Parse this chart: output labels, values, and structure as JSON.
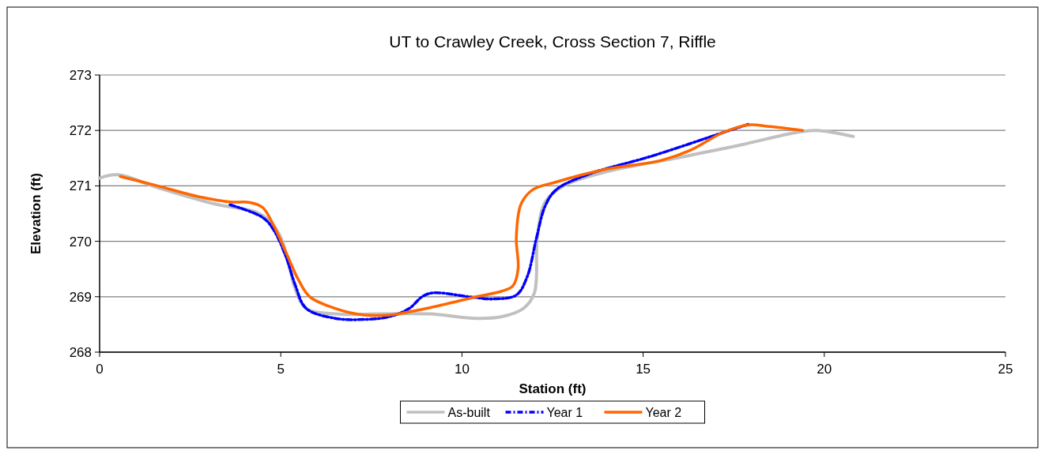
{
  "chart_data": {
    "type": "line",
    "title": "UT to Crawley Creek, Cross Section 7, Riffle",
    "xlabel": "Station (ft)",
    "ylabel": "Elevation (ft)",
    "xlim": [
      0,
      25
    ],
    "xticks": [
      0,
      5,
      10,
      15,
      20,
      25
    ],
    "ylim": [
      268,
      273
    ],
    "yticks": [
      268,
      269,
      270,
      271,
      272,
      273
    ],
    "grid": "y",
    "legend": "bottom",
    "marker": "none",
    "series": [
      {
        "name": "As-built",
        "color": "#c0c0c0",
        "line_style": "solid",
        "x": [
          0,
          0.5,
          1.6,
          3.2,
          4.3,
          4.7,
          5.0,
          5.25,
          5.4,
          5.7,
          6.5,
          7.8,
          9.1,
          10.4,
          11.1,
          11.7,
          12.0,
          12.08,
          12.3,
          12.8,
          13.9,
          15.9,
          17.7,
          19.2,
          19.8,
          20.8
        ],
        "values": [
          271.14,
          271.2,
          270.97,
          270.67,
          270.53,
          270.36,
          270.07,
          269.5,
          269.14,
          268.79,
          268.69,
          268.69,
          268.69,
          268.61,
          268.64,
          268.79,
          269.07,
          270.07,
          270.71,
          271.0,
          271.24,
          271.5,
          271.74,
          271.96,
          272.0,
          271.89
        ]
      },
      {
        "name": "Year 1",
        "color": "#0000ff",
        "line_style": "dashed",
        "x": [
          3.6,
          4.5,
          4.8,
          5.15,
          5.4,
          5.7,
          6.5,
          7.3,
          8.0,
          8.55,
          8.9,
          9.2,
          10.2,
          10.85,
          11.5,
          11.8,
          12.06,
          12.3,
          12.6,
          13.5,
          15.2,
          17.2,
          17.9
        ],
        "values": [
          270.66,
          270.43,
          270.21,
          269.71,
          269.21,
          268.79,
          268.61,
          268.59,
          268.64,
          268.79,
          269.0,
          269.07,
          269.0,
          268.96,
          269.03,
          269.36,
          270.07,
          270.64,
          270.93,
          271.21,
          271.53,
          271.96,
          272.11
        ]
      },
      {
        "name": "Year 2",
        "color": "#ff6600",
        "line_style": "solid",
        "x": [
          0.57,
          1.6,
          2.7,
          3.6,
          4.15,
          4.5,
          4.8,
          5.15,
          5.5,
          5.8,
          6.5,
          7.3,
          8.0,
          8.65,
          9.5,
          10.4,
          11.1,
          11.4,
          11.55,
          11.5,
          11.63,
          11.95,
          12.6,
          13.9,
          15.5,
          16.3,
          17.2,
          17.9,
          18.5,
          19.4
        ],
        "values": [
          271.17,
          271.0,
          270.81,
          270.71,
          270.7,
          270.61,
          270.29,
          269.79,
          269.29,
          269.0,
          268.79,
          268.67,
          268.67,
          268.74,
          268.86,
          269.0,
          269.1,
          269.19,
          269.5,
          270.07,
          270.67,
          270.93,
          271.07,
          271.29,
          271.46,
          271.64,
          271.96,
          272.1,
          272.07,
          272.0
        ]
      }
    ]
  }
}
